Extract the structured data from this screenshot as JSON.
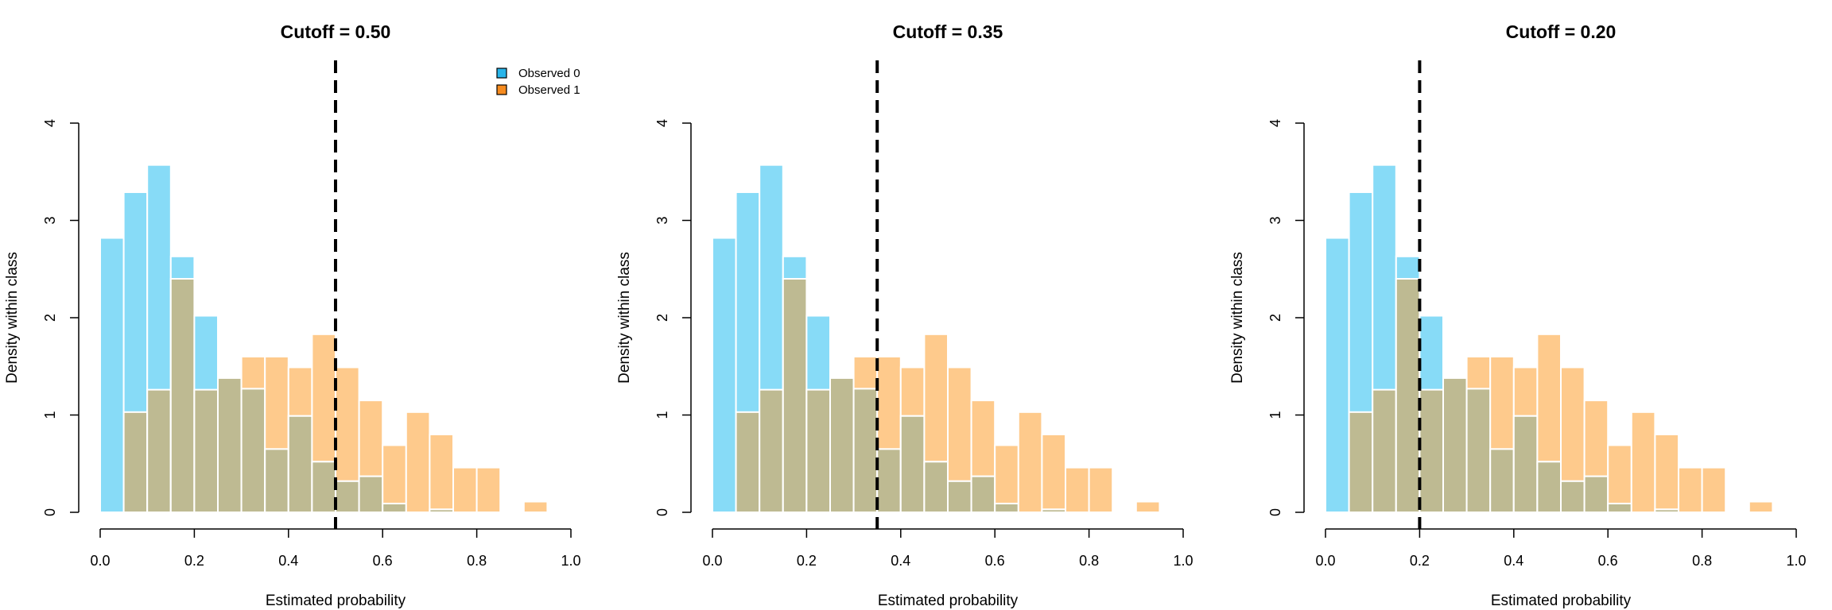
{
  "chart_data": [
    {
      "type": "bar",
      "title": "Cutoff = 0.50",
      "cutoff": 0.5,
      "xlabel": "Estimated probability",
      "ylabel": "Density within class",
      "xlim": [
        0,
        1
      ],
      "ylim": [
        0,
        4
      ],
      "xticks": [
        "0.0",
        "0.2",
        "0.4",
        "0.6",
        "0.8",
        "1.0"
      ],
      "yticks": [
        "0",
        "1",
        "2",
        "3",
        "4"
      ],
      "bin_width": 0.05,
      "bin_starts": [
        0.0,
        0.05,
        0.1,
        0.15,
        0.2,
        0.25,
        0.3,
        0.35,
        0.4,
        0.45,
        0.5,
        0.55,
        0.6,
        0.65,
        0.7,
        0.75,
        0.8,
        0.85,
        0.9
      ],
      "legend": {
        "position": "top-right",
        "items": [
          "Observed 0",
          "Observed 1"
        ]
      },
      "series": [
        {
          "name": "Observed 0",
          "color": "#87DBF7",
          "values": [
            2.82,
            3.29,
            3.57,
            2.63,
            2.02,
            1.38,
            1.27,
            0.65,
            0.99,
            0.52,
            0.32,
            0.37,
            0.09,
            0.0,
            0.03,
            0.0,
            0.0,
            0.0,
            0.0
          ]
        },
        {
          "name": "Observed 1",
          "color": "#FECA8C",
          "values": [
            0.0,
            1.03,
            1.26,
            2.4,
            1.26,
            1.38,
            1.6,
            1.6,
            1.49,
            1.83,
            1.49,
            1.15,
            0.69,
            1.03,
            0.8,
            0.46,
            0.46,
            0.0,
            0.11
          ]
        }
      ],
      "overlap_color": "#BEBA92"
    },
    {
      "type": "bar",
      "title": "Cutoff = 0.35",
      "cutoff": 0.35,
      "xlabel": "Estimated probability",
      "ylabel": "Density within class",
      "xlim": [
        0,
        1
      ],
      "ylim": [
        0,
        4
      ],
      "xticks": [
        "0.0",
        "0.2",
        "0.4",
        "0.6",
        "0.8",
        "1.0"
      ],
      "yticks": [
        "0",
        "1",
        "2",
        "3",
        "4"
      ],
      "bin_width": 0.05,
      "bin_starts": [
        0.0,
        0.05,
        0.1,
        0.15,
        0.2,
        0.25,
        0.3,
        0.35,
        0.4,
        0.45,
        0.5,
        0.55,
        0.6,
        0.65,
        0.7,
        0.75,
        0.8,
        0.85,
        0.9
      ],
      "series": [
        {
          "name": "Observed 0",
          "color": "#87DBF7",
          "values": [
            2.82,
            3.29,
            3.57,
            2.63,
            2.02,
            1.38,
            1.27,
            0.65,
            0.99,
            0.52,
            0.32,
            0.37,
            0.09,
            0.0,
            0.03,
            0.0,
            0.0,
            0.0,
            0.0
          ]
        },
        {
          "name": "Observed 1",
          "color": "#FECA8C",
          "values": [
            0.0,
            1.03,
            1.26,
            2.4,
            1.26,
            1.38,
            1.6,
            1.6,
            1.49,
            1.83,
            1.49,
            1.15,
            0.69,
            1.03,
            0.8,
            0.46,
            0.46,
            0.0,
            0.11
          ]
        }
      ],
      "overlap_color": "#BEBA92"
    },
    {
      "type": "bar",
      "title": "Cutoff = 0.20",
      "cutoff": 0.2,
      "xlabel": "Estimated probability",
      "ylabel": "Density within class",
      "xlim": [
        0,
        1
      ],
      "ylim": [
        0,
        4
      ],
      "xticks": [
        "0.0",
        "0.2",
        "0.4",
        "0.6",
        "0.8",
        "1.0"
      ],
      "yticks": [
        "0",
        "1",
        "2",
        "3",
        "4"
      ],
      "bin_width": 0.05,
      "bin_starts": [
        0.0,
        0.05,
        0.1,
        0.15,
        0.2,
        0.25,
        0.3,
        0.35,
        0.4,
        0.45,
        0.5,
        0.55,
        0.6,
        0.65,
        0.7,
        0.75,
        0.8,
        0.85,
        0.9
      ],
      "series": [
        {
          "name": "Observed 0",
          "color": "#87DBF7",
          "values": [
            2.82,
            3.29,
            3.57,
            2.63,
            2.02,
            1.38,
            1.27,
            0.65,
            0.99,
            0.52,
            0.32,
            0.37,
            0.09,
            0.0,
            0.03,
            0.0,
            0.0,
            0.0,
            0.0
          ]
        },
        {
          "name": "Observed 1",
          "color": "#FECA8C",
          "values": [
            0.0,
            1.03,
            1.26,
            2.4,
            1.26,
            1.38,
            1.6,
            1.6,
            1.49,
            1.83,
            1.49,
            1.15,
            0.69,
            1.03,
            0.8,
            0.46,
            0.46,
            0.0,
            0.11
          ]
        }
      ],
      "overlap_color": "#BEBA92"
    }
  ],
  "legend_colors": {
    "observed_0_fill": "#29B5EA",
    "observed_1_fill": "#F68B1F"
  }
}
